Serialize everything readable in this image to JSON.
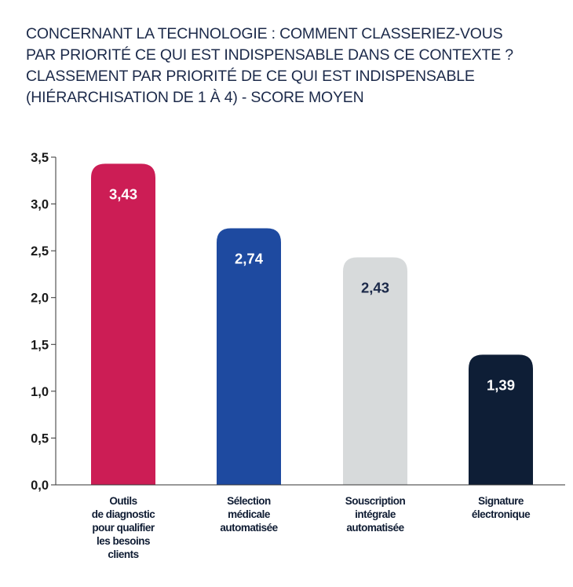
{
  "title_lines": [
    "CONCERNANT LA TECHNOLOGIE : COMMENT CLASSERIEZ-VOUS",
    "PAR PRIORITÉ CE QUI EST INDISPENSABLE DANS CE CONTEXTE ?",
    "CLASSEMENT PAR PRIORITÉ DE CE QUI EST INDISPENSABLE",
    "(HIÉRARCHISATION DE 1 À 4) - SCORE MOYEN"
  ],
  "chart_data": {
    "type": "bar",
    "title": "CONCERNANT LA TECHNOLOGIE : COMMENT CLASSERIEZ-VOUS PAR PRIORITÉ CE QUI EST INDISPENSABLE DANS CE CONTEXTE ? CLASSEMENT PAR PRIORITÉ DE CE QUI EST INDISPENSABLE (HIÉRARCHISATION DE 1 À 4) - SCORE MOYEN",
    "xlabel": "",
    "ylabel": "",
    "ylim": [
      0,
      3.5
    ],
    "yticks": [
      "0,0",
      "0,5",
      "1,0",
      "1,5",
      "2,0",
      "2,5",
      "3,0",
      "3,5"
    ],
    "categories": [
      "Outils de diagnostic pour qualifier les besoins clients",
      "Sélection médicale automatisée",
      "Souscription intégrale automatisée",
      "Signature électronique"
    ],
    "category_lines": [
      [
        "Outils",
        "de diagnostic",
        "pour qualifier",
        "les besoins",
        "clients"
      ],
      [
        "Sélection",
        "médicale",
        "automatisée"
      ],
      [
        "Souscription",
        "intégrale",
        "automatisée"
      ],
      [
        "Signature",
        "électronique"
      ]
    ],
    "values": [
      3.43,
      2.74,
      2.43,
      1.39
    ],
    "value_labels": [
      "3,43",
      "2,74",
      "2,43",
      "1,39"
    ],
    "colors": [
      "#cc1d55",
      "#1e4aa0",
      "#d7dadb",
      "#0e1e36"
    ],
    "label_colors": [
      "#ffffff",
      "#ffffff",
      "#1c2a4a",
      "#ffffff"
    ],
    "grid": false,
    "legend": "none"
  }
}
